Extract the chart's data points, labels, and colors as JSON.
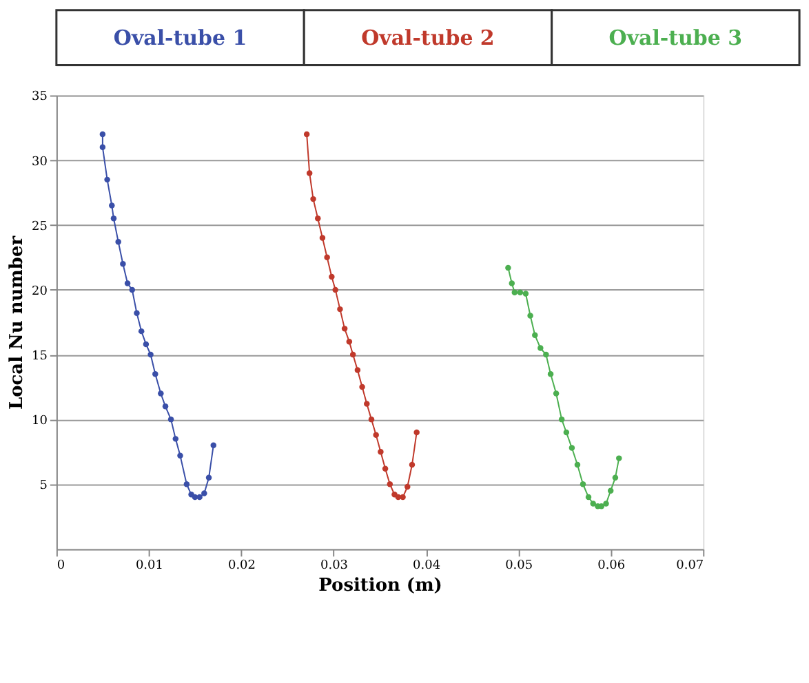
{
  "chart_data": {
    "type": "line",
    "xlabel": "Position (m)",
    "ylabel": "Local Nu number",
    "xlim": [
      0,
      0.07
    ],
    "xticks": [
      0,
      0.01,
      0.02,
      0.03,
      0.04,
      0.05,
      0.06,
      0.07
    ],
    "ylim": [
      0,
      35
    ],
    "yticks": [
      5,
      10,
      15,
      20,
      25,
      30,
      35
    ],
    "grid": "y",
    "legend": "top",
    "marker": "circle",
    "line_style": "solid",
    "series": [
      {
        "name": "Oval-tube 1",
        "color": "#3a4fa8",
        "x": [
          0.005,
          0.005,
          0.0055,
          0.006,
          0.0062,
          0.0067,
          0.0072,
          0.0077,
          0.0082,
          0.0087,
          0.0092,
          0.0097,
          0.0102,
          0.0107,
          0.0113,
          0.0118,
          0.0124,
          0.0129,
          0.0134,
          0.0141,
          0.0146,
          0.015,
          0.0155,
          0.016,
          0.0165,
          0.017
        ],
        "values": [
          32,
          31,
          28.5,
          26.5,
          25.5,
          23.7,
          22,
          20.5,
          20,
          18.2,
          16.8,
          15.8,
          15,
          13.5,
          12,
          11,
          10,
          8.5,
          7.2,
          5,
          4.2,
          4,
          4,
          4.3,
          5.5,
          8
        ]
      },
      {
        "name": "Oval-tube 2",
        "color": "#c0392b",
        "x": [
          0.0271,
          0.0274,
          0.0278,
          0.0283,
          0.0288,
          0.0293,
          0.0298,
          0.0302,
          0.0307,
          0.0312,
          0.0317,
          0.0321,
          0.0326,
          0.0331,
          0.0336,
          0.0341,
          0.0346,
          0.0351,
          0.0356,
          0.0361,
          0.0366,
          0.037,
          0.0375,
          0.038,
          0.0385,
          0.039
        ],
        "values": [
          32,
          29,
          27,
          25.5,
          24,
          22.5,
          21,
          20,
          18.5,
          17,
          16,
          15,
          13.8,
          12.5,
          11.2,
          10,
          8.8,
          7.5,
          6.2,
          5,
          4.2,
          4,
          4,
          4.8,
          6.5,
          9
        ]
      },
      {
        "name": "Oval-tube 3",
        "color": "#4caf50",
        "x": [
          0.0489,
          0.0493,
          0.0496,
          0.0502,
          0.0508,
          0.0513,
          0.0518,
          0.0524,
          0.053,
          0.0535,
          0.0541,
          0.0547,
          0.0552,
          0.0558,
          0.0564,
          0.057,
          0.0576,
          0.0581,
          0.0586,
          0.059,
          0.0595,
          0.06,
          0.0605,
          0.0609
        ],
        "values": [
          21.7,
          20.5,
          19.8,
          19.8,
          19.7,
          18,
          16.5,
          15.5,
          15,
          13.5,
          12,
          10,
          9,
          7.8,
          6.5,
          5,
          4,
          3.5,
          3.3,
          3.3,
          3.5,
          4.5,
          5.5,
          7
        ]
      }
    ]
  }
}
